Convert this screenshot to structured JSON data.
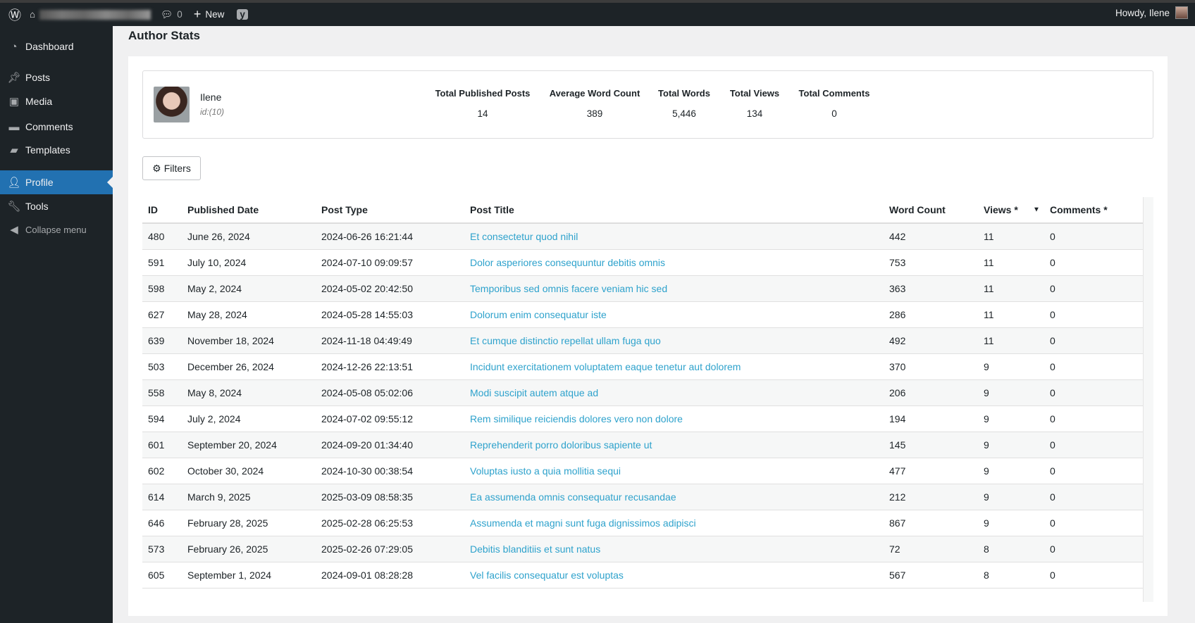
{
  "topbar": {
    "comments_count": "0",
    "new_label": "New",
    "howdy": "Howdy, Ilene"
  },
  "sidebar": {
    "items": [
      {
        "label": "Dashboard",
        "icon": "dashboard-icon"
      },
      {
        "label": "Posts",
        "icon": "pin-icon"
      },
      {
        "label": "Media",
        "icon": "media-icon"
      },
      {
        "label": "Comments",
        "icon": "comment-icon"
      },
      {
        "label": "Templates",
        "icon": "folder-icon"
      },
      {
        "label": "Profile",
        "icon": "user-icon",
        "active": true
      },
      {
        "label": "Tools",
        "icon": "wrench-icon"
      },
      {
        "label": "Collapse menu",
        "icon": "collapse-icon"
      }
    ]
  },
  "page": {
    "title": "Author Stats"
  },
  "author": {
    "name": "Ilene",
    "id": "id:(10)"
  },
  "stats": [
    {
      "label": "Total Published Posts",
      "value": "14"
    },
    {
      "label": "Average Word Count",
      "value": "389"
    },
    {
      "label": "Total Words",
      "value": "5,446"
    },
    {
      "label": "Total Views",
      "value": "134"
    },
    {
      "label": "Total Comments",
      "value": "0"
    }
  ],
  "filters_label": "Filters",
  "table": {
    "columns": [
      "ID",
      "Published Date",
      "Post Type",
      "Post Title",
      "Word Count",
      "Views *",
      "Comments *"
    ],
    "sort_column": "Views *",
    "rows": [
      [
        "480",
        "June 26, 2024",
        "2024-06-26 16:21:44",
        "Et consectetur quod nihil",
        "442",
        "11",
        "0"
      ],
      [
        "591",
        "July 10, 2024",
        "2024-07-10 09:09:57",
        "Dolor asperiores consequuntur debitis omnis",
        "753",
        "11",
        "0"
      ],
      [
        "598",
        "May 2, 2024",
        "2024-05-02 20:42:50",
        "Temporibus sed omnis facere veniam hic sed",
        "363",
        "11",
        "0"
      ],
      [
        "627",
        "May 28, 2024",
        "2024-05-28 14:55:03",
        "Dolorum enim consequatur iste",
        "286",
        "11",
        "0"
      ],
      [
        "639",
        "November 18, 2024",
        "2024-11-18 04:49:49",
        "Et cumque distinctio repellat ullam fuga quo",
        "492",
        "11",
        "0"
      ],
      [
        "503",
        "December 26, 2024",
        "2024-12-26 22:13:51",
        "Incidunt exercitationem voluptatem eaque tenetur aut dolorem",
        "370",
        "9",
        "0"
      ],
      [
        "558",
        "May 8, 2024",
        "2024-05-08 05:02:06",
        "Modi suscipit autem atque ad",
        "206",
        "9",
        "0"
      ],
      [
        "594",
        "July 2, 2024",
        "2024-07-02 09:55:12",
        "Rem similique reiciendis dolores vero non dolore",
        "194",
        "9",
        "0"
      ],
      [
        "601",
        "September 20, 2024",
        "2024-09-20 01:34:40",
        "Reprehenderit porro doloribus sapiente ut",
        "145",
        "9",
        "0"
      ],
      [
        "602",
        "October 30, 2024",
        "2024-10-30 00:38:54",
        "Voluptas iusto a quia mollitia sequi",
        "477",
        "9",
        "0"
      ],
      [
        "614",
        "March 9, 2025",
        "2025-03-09 08:58:35",
        "Ea assumenda omnis consequatur recusandae",
        "212",
        "9",
        "0"
      ],
      [
        "646",
        "February 28, 2025",
        "2025-02-28 06:25:53",
        "Assumenda et magni sunt fuga dignissimos adipisci",
        "867",
        "9",
        "0"
      ],
      [
        "573",
        "February 26, 2025",
        "2025-02-26 07:29:05",
        "Debitis blanditiis et sunt natus",
        "72",
        "8",
        "0"
      ],
      [
        "605",
        "September 1, 2024",
        "2024-09-01 08:28:28",
        "Vel facilis consequatur est voluptas",
        "567",
        "8",
        "0"
      ]
    ]
  },
  "colors": {
    "link": "#2ea2cc",
    "accent": "#2271b1",
    "adminbar": "#1d2327"
  }
}
